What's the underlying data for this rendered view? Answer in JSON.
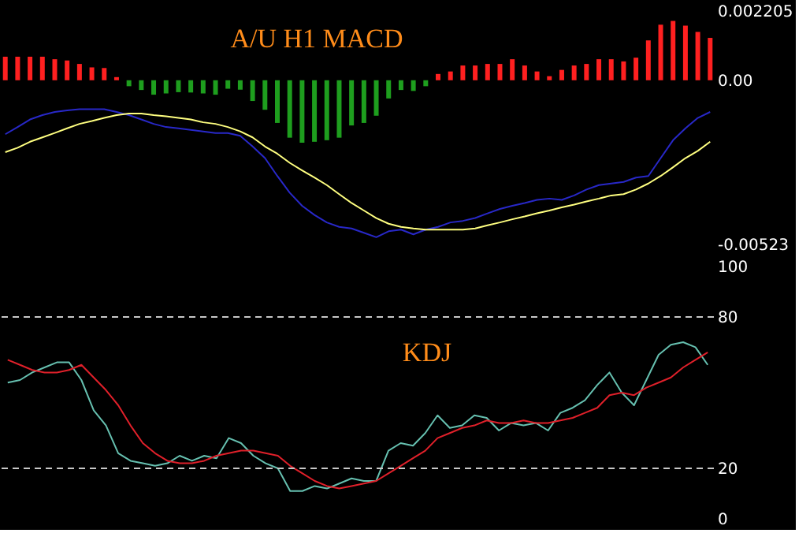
{
  "chart_data": [
    {
      "type": "bar",
      "title": "A/U H1 MACD",
      "categories": [
        null,
        null,
        null,
        null,
        null,
        null,
        null,
        null,
        null,
        null,
        null,
        null,
        null,
        null,
        null,
        null,
        null,
        null,
        null,
        null,
        null,
        null,
        null,
        null,
        null,
        null,
        null,
        null,
        null,
        null,
        null,
        null,
        null,
        null,
        null,
        null,
        null,
        null,
        null,
        null,
        null,
        null,
        null,
        null,
        null,
        null,
        null,
        null,
        null,
        null,
        null,
        null,
        null,
        null,
        null,
        null,
        null,
        null
      ],
      "series": [
        {
          "type": "bar",
          "colors": [
            "#ff2020",
            "#ff2020",
            "#ff2020",
            "#ff2020",
            "#ff2020",
            "#ff2020",
            "#ff2020",
            "#ff2020",
            "#ff2020",
            "#ff2020",
            "#1e9e1e",
            "#1e9e1e",
            "#1e9e1e",
            "#1e9e1e",
            "#1e9e1e",
            "#1e9e1e",
            "#1e9e1e",
            "#1e9e1e",
            "#1e9e1e",
            "#1e9e1e",
            "#1e9e1e",
            "#1e9e1e",
            "#1e9e1e",
            "#1e9e1e",
            "#1e9e1e",
            "#1e9e1e",
            "#1e9e1e",
            "#1e9e1e",
            "#1e9e1e",
            "#1e9e1e",
            "#1e9e1e",
            "#1e9e1e",
            "#1e9e1e",
            "#1e9e1e",
            "#1e9e1e",
            "#ff2020",
            "#ff2020",
            "#ff2020",
            "#ff2020",
            "#ff2020",
            "#ff2020",
            "#ff2020",
            "#ff2020",
            "#ff2020",
            "#ff2020",
            "#ff2020",
            "#ff2020",
            "#ff2020",
            "#ff2020",
            "#ff2020",
            "#ff2020",
            "#ff2020",
            "#ff2020",
            "#ff2020",
            "#ff2020",
            "#ff2020",
            "#ff2020",
            "#ff2020"
          ],
          "values": [
            0.00075,
            0.00075,
            0.00075,
            0.00075,
            0.00067,
            0.00063,
            0.00052,
            0.00041,
            0.00039,
            0.0001,
            -0.00019,
            -0.00031,
            -0.00046,
            -0.00042,
            -0.00038,
            -0.00039,
            -0.00042,
            -0.00046,
            -0.00027,
            -0.0003,
            -0.00066,
            -0.00094,
            -0.00136,
            -0.00183,
            -0.00199,
            -0.00196,
            -0.00191,
            -0.00183,
            -0.00144,
            -0.00136,
            -0.00113,
            -0.00058,
            -0.00031,
            -0.00034,
            -0.00019,
            0.0002,
            0.00028,
            0.00047,
            0.00047,
            0.00052,
            0.00052,
            0.00067,
            0.00047,
            0.00028,
            0.00013,
            0.00033,
            0.00047,
            0.00052,
            0.00067,
            0.00067,
            0.0006,
            0.00072,
            0.00127,
            0.00177,
            0.00189,
            0.00174,
            0.00154,
            0.00135
          ]
        },
        {
          "type": "line",
          "color": "#2828c8",
          "values": [
            -0.00172,
            -0.00149,
            -0.00125,
            -0.00111,
            -0.00101,
            -0.00096,
            -0.00092,
            -0.00092,
            -0.00092,
            -0.00101,
            -0.00111,
            -0.00125,
            -0.00139,
            -0.00149,
            -0.00153,
            -0.00158,
            -0.00163,
            -0.00168,
            -0.00168,
            -0.00177,
            -0.00211,
            -0.00248,
            -0.00305,
            -0.00358,
            -0.004,
            -0.00429,
            -0.00453,
            -0.00467,
            -0.00472,
            -0.00486,
            -0.005,
            -0.00481,
            -0.00476,
            -0.00491,
            -0.00476,
            -0.00467,
            -0.00453,
            -0.00448,
            -0.00439,
            -0.00424,
            -0.0041,
            -0.004,
            -0.00391,
            -0.00381,
            -0.00377,
            -0.00381,
            -0.00367,
            -0.00348,
            -0.00334,
            -0.00329,
            -0.00324,
            -0.0031,
            -0.00305,
            -0.00248,
            -0.00191,
            -0.00153,
            -0.0012,
            -0.00101
          ]
        },
        {
          "type": "line",
          "color": "#ffff80",
          "values": [
            -0.00229,
            -0.00215,
            -0.00196,
            -0.00182,
            -0.00168,
            -0.00153,
            -0.00139,
            -0.0013,
            -0.0012,
            -0.00111,
            -0.00106,
            -0.00106,
            -0.00111,
            -0.00115,
            -0.0012,
            -0.00125,
            -0.00134,
            -0.00139,
            -0.00149,
            -0.00163,
            -0.00182,
            -0.00211,
            -0.00234,
            -0.00263,
            -0.00287,
            -0.0031,
            -0.00334,
            -0.00363,
            -0.00391,
            -0.00415,
            -0.00439,
            -0.00457,
            -0.00467,
            -0.00472,
            -0.00476,
            -0.00476,
            -0.00476,
            -0.00476,
            -0.00472,
            -0.00462,
            -0.00453,
            -0.00443,
            -0.00434,
            -0.00424,
            -0.00415,
            -0.00405,
            -0.00396,
            -0.00386,
            -0.00377,
            -0.00367,
            -0.00363,
            -0.00348,
            -0.00329,
            -0.00305,
            -0.00277,
            -0.00248,
            -0.00225,
            -0.00196
          ]
        }
      ],
      "ylim": [
        -0.00523,
        0.002205
      ],
      "yticks": [
        {
          "value": 0.002205,
          "label": "0.002205"
        },
        {
          "value": 0,
          "label": "0.00"
        },
        {
          "value": -0.00523,
          "label": "-0.00523"
        }
      ],
      "tick_labels": "y"
    },
    {
      "type": "line",
      "title": "KDJ",
      "categories": [
        null,
        null,
        null,
        null,
        null,
        null,
        null,
        null,
        null,
        null,
        null,
        null,
        null,
        null,
        null,
        null,
        null,
        null,
        null,
        null,
        null,
        null,
        null,
        null,
        null,
        null,
        null,
        null,
        null,
        null,
        null,
        null,
        null,
        null,
        null,
        null,
        null,
        null,
        null,
        null,
        null,
        null,
        null,
        null,
        null,
        null,
        null,
        null,
        null,
        null,
        null,
        null,
        null,
        null,
        null,
        null,
        null,
        null
      ],
      "series": [
        {
          "color": "#66c0b0",
          "values": [
            54,
            55,
            58,
            60,
            62,
            62,
            55,
            43,
            37,
            26,
            23,
            22,
            21,
            22,
            25,
            23,
            25,
            24,
            32,
            30,
            25,
            22,
            20,
            11,
            11,
            13,
            12,
            14,
            16,
            15,
            15,
            27,
            30,
            29,
            34,
            41,
            36,
            37,
            41,
            40,
            35,
            38,
            37,
            38,
            35,
            42,
            44,
            47,
            53,
            58,
            50,
            45,
            55,
            65,
            69,
            70,
            68,
            61
          ]
        },
        {
          "color": "#e0202a",
          "values": [
            63,
            61,
            59,
            58,
            58,
            59,
            61,
            56,
            51,
            45,
            37,
            30,
            26,
            23,
            22,
            22,
            23,
            25,
            26,
            27,
            27,
            26,
            25,
            21,
            18,
            15,
            13,
            12,
            13,
            14,
            15,
            18,
            21,
            24,
            27,
            32,
            34,
            36,
            37,
            39,
            38,
            38,
            39,
            38,
            38,
            39,
            40,
            42,
            44,
            49,
            50,
            49,
            52,
            54,
            56,
            60,
            63,
            66
          ]
        }
      ],
      "ylim": [
        0,
        100
      ],
      "yticks": [
        0,
        20,
        80,
        100
      ],
      "tick_labels": "y",
      "ref_lines": [
        {
          "axis": "y",
          "value": 80,
          "color": "#c8c8c8",
          "line_style": "dashed"
        },
        {
          "axis": "y",
          "value": 20,
          "color": "#c8c8c8",
          "line_style": "dashed"
        }
      ]
    }
  ]
}
